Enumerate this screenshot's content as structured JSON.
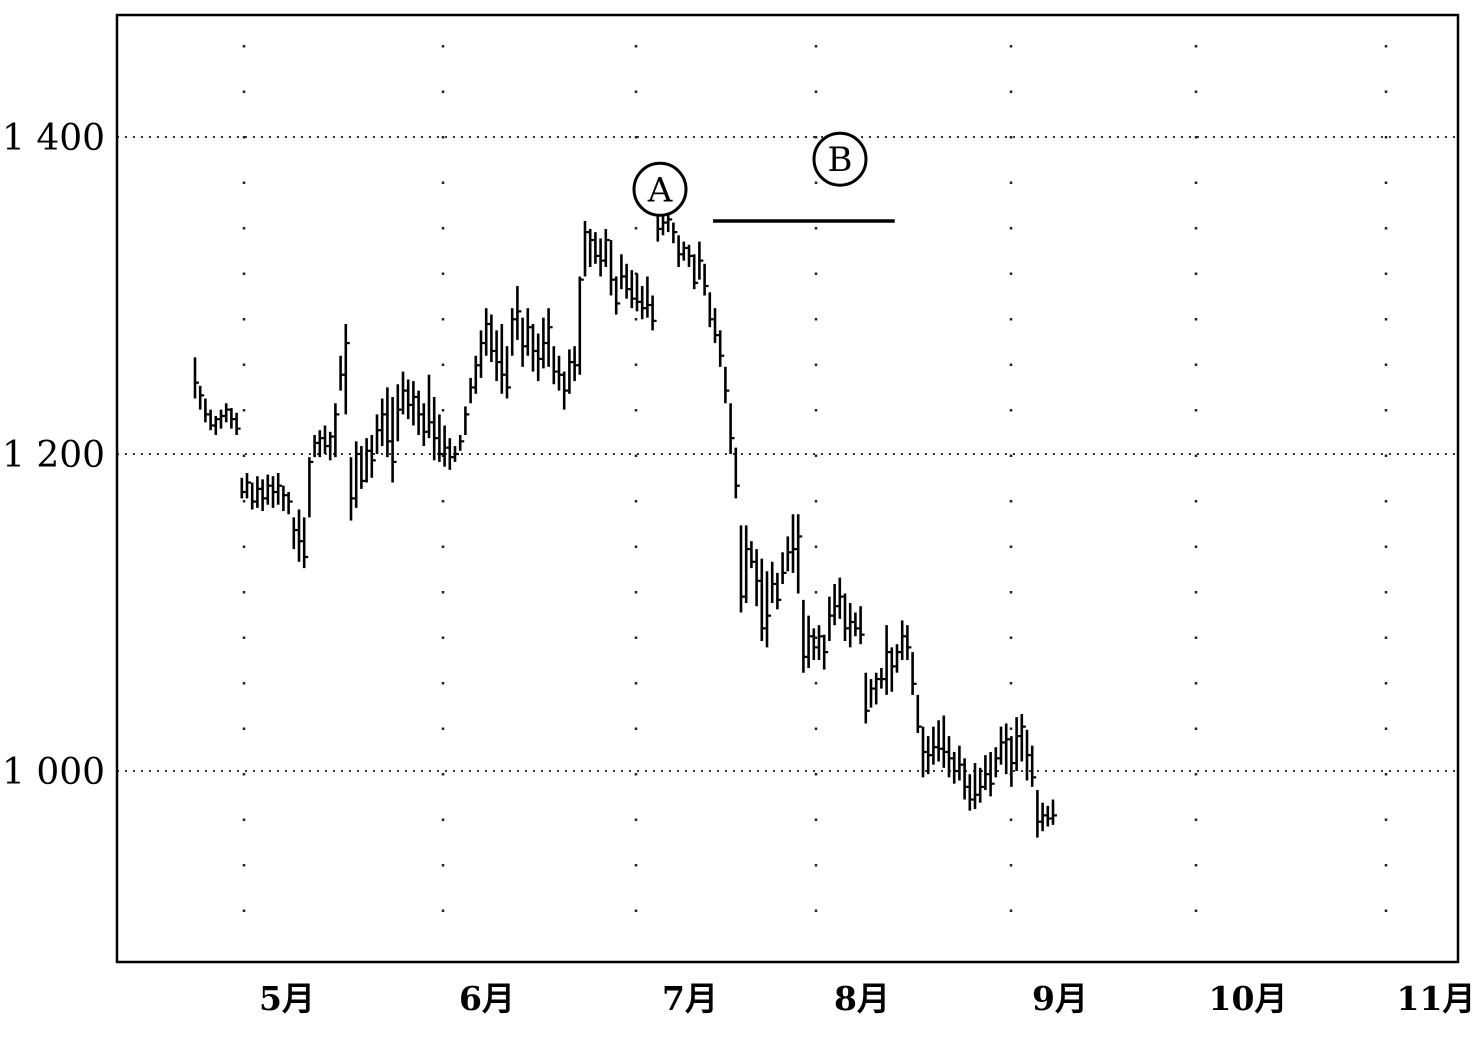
{
  "chart_data": {
    "type": "ohlc",
    "title": "",
    "xlabel": "",
    "ylabel": "",
    "ylim": [
      870,
      1480
    ],
    "y_ticks": [
      {
        "value": 1000,
        "label": "1 000"
      },
      {
        "value": 1200,
        "label": "1 200"
      },
      {
        "value": 1400,
        "label": "1 400"
      }
    ],
    "x_ticks": [
      "5月",
      "6月",
      "7月",
      "8月",
      "9月",
      "10月",
      "11月"
    ],
    "grid": "dotted horizontal lines at labeled levels, dotted vertical columns",
    "annotations": [
      {
        "label": "A",
        "bar_index": 100,
        "price": 1367
      },
      {
        "label": "B",
        "bar_index": 125,
        "price": 1386
      }
    ],
    "resistance_line": {
      "from_index": 100,
      "to_index": 134,
      "value": 1347
    },
    "series": [
      {
        "values": [
          [
            1261,
            1235,
            1245
          ],
          [
            1243,
            1228,
            1237
          ],
          [
            1235,
            1220,
            1225
          ],
          [
            1228,
            1215,
            1218
          ],
          [
            1224,
            1212,
            1222
          ],
          [
            1228,
            1216,
            1224
          ],
          [
            1232,
            1220,
            1228
          ],
          [
            1229,
            1216,
            1222
          ],
          [
            1226,
            1212,
            1216
          ],
          [
            1185,
            1172,
            1176
          ],
          [
            1188,
            1172,
            1182
          ],
          [
            1182,
            1165,
            1170
          ],
          [
            1186,
            1166,
            1178
          ],
          [
            1184,
            1164,
            1172
          ],
          [
            1187,
            1168,
            1180
          ],
          [
            1186,
            1166,
            1176
          ],
          [
            1188,
            1168,
            1180
          ],
          [
            1180,
            1164,
            1174
          ],
          [
            1176,
            1162,
            1170
          ],
          [
            1160,
            1140,
            1152
          ],
          [
            1165,
            1132,
            1145
          ],
          [
            1160,
            1128,
            1135
          ],
          [
            1198,
            1160,
            1195
          ],
          [
            1212,
            1198,
            1207
          ],
          [
            1215,
            1198,
            1210
          ],
          [
            1218,
            1200,
            1205
          ],
          [
            1214,
            1196,
            1211
          ],
          [
            1232,
            1198,
            1225
          ],
          [
            1262,
            1240,
            1250
          ],
          [
            1282,
            1225,
            1270
          ],
          [
            1198,
            1158,
            1172
          ],
          [
            1208,
            1166,
            1200
          ],
          [
            1205,
            1178,
            1183
          ],
          [
            1210,
            1182,
            1202
          ],
          [
            1212,
            1185,
            1196
          ],
          [
            1225,
            1200,
            1215
          ],
          [
            1235,
            1205,
            1225
          ],
          [
            1242,
            1198,
            1208
          ],
          [
            1236,
            1182,
            1195
          ],
          [
            1244,
            1208,
            1228
          ],
          [
            1252,
            1225,
            1240
          ],
          [
            1247,
            1222,
            1231
          ],
          [
            1246,
            1218,
            1236
          ],
          [
            1240,
            1212,
            1225
          ],
          [
            1232,
            1205,
            1214
          ],
          [
            1250,
            1210,
            1220
          ],
          [
            1236,
            1196,
            1210
          ],
          [
            1225,
            1195,
            1200
          ],
          [
            1218,
            1192,
            1204
          ],
          [
            1210,
            1190,
            1198
          ],
          [
            1205,
            1195,
            1200
          ],
          [
            1212,
            1202,
            1208
          ],
          [
            1230,
            1212,
            1225
          ],
          [
            1248,
            1232,
            1242
          ],
          [
            1262,
            1238,
            1256
          ],
          [
            1278,
            1248,
            1270
          ],
          [
            1292,
            1262,
            1282
          ],
          [
            1288,
            1258,
            1265
          ],
          [
            1278,
            1246,
            1258
          ],
          [
            1282,
            1238,
            1250
          ],
          [
            1268,
            1235,
            1242
          ],
          [
            1292,
            1262,
            1285
          ],
          [
            1306,
            1272,
            1290
          ],
          [
            1286,
            1255,
            1268
          ],
          [
            1292,
            1262,
            1280
          ],
          [
            1282,
            1252,
            1265
          ],
          [
            1276,
            1246,
            1260
          ],
          [
            1286,
            1254,
            1270
          ],
          [
            1292,
            1255,
            1280
          ],
          [
            1268,
            1244,
            1252
          ],
          [
            1262,
            1240,
            1250
          ],
          [
            1252,
            1228,
            1240
          ],
          [
            1266,
            1238,
            1258
          ],
          [
            1268,
            1246,
            1256
          ],
          [
            1312,
            1250,
            1310
          ],
          [
            1347,
            1312,
            1340
          ],
          [
            1342,
            1318,
            1335
          ],
          [
            1340,
            1320,
            1325
          ],
          [
            1336,
            1312,
            1322
          ],
          [
            1342,
            1318,
            1335
          ],
          [
            1335,
            1300,
            1310
          ],
          [
            1312,
            1288,
            1295
          ],
          [
            1326,
            1304,
            1312
          ],
          [
            1320,
            1298,
            1304
          ],
          [
            1316,
            1292,
            1298
          ],
          [
            1314,
            1290,
            1296
          ],
          [
            1306,
            1285,
            1292
          ],
          [
            1312,
            1286,
            1294
          ],
          [
            1300,
            1278,
            1284
          ],
          [
            1366,
            1334,
            1342
          ],
          [
            1352,
            1338,
            1346
          ],
          [
            1354,
            1340,
            1348
          ],
          [
            1346,
            1333,
            1340
          ],
          [
            1338,
            1318,
            1326
          ],
          [
            1334,
            1322,
            1330
          ],
          [
            1332,
            1318,
            1325
          ],
          [
            1326,
            1304,
            1308
          ],
          [
            1334,
            1310,
            1322
          ],
          [
            1320,
            1300,
            1306
          ],
          [
            1302,
            1280,
            1285
          ],
          [
            1292,
            1270,
            1275
          ],
          [
            1278,
            1255,
            1262
          ],
          [
            1255,
            1232,
            1240
          ],
          [
            1232,
            1200,
            1210
          ],
          [
            1204,
            1172,
            1180
          ],
          [
            1155,
            1100,
            1110
          ],
          [
            1155,
            1106,
            1140
          ],
          [
            1145,
            1128,
            1132
          ],
          [
            1140,
            1104,
            1120
          ],
          [
            1134,
            1082,
            1090
          ],
          [
            1126,
            1078,
            1098
          ],
          [
            1132,
            1106,
            1118
          ],
          [
            1125,
            1102,
            1108
          ],
          [
            1138,
            1118,
            1125
          ],
          [
            1148,
            1126,
            1138
          ],
          [
            1162,
            1125,
            1140
          ],
          [
            1162,
            1112,
            1148
          ],
          [
            1108,
            1062,
            1072
          ],
          [
            1098,
            1065,
            1085
          ],
          [
            1090,
            1070,
            1078
          ],
          [
            1092,
            1070,
            1085
          ],
          [
            1086,
            1064,
            1075
          ],
          [
            1110,
            1082,
            1098
          ],
          [
            1118,
            1092,
            1104
          ],
          [
            1122,
            1096,
            1110
          ],
          [
            1112,
            1082,
            1090
          ],
          [
            1106,
            1078,
            1094
          ],
          [
            1100,
            1085,
            1090
          ],
          [
            1104,
            1080,
            1086
          ],
          [
            1062,
            1030,
            1038
          ],
          [
            1058,
            1040,
            1052
          ],
          [
            1062,
            1042,
            1058
          ],
          [
            1065,
            1052,
            1058
          ],
          [
            1092,
            1048,
            1075
          ],
          [
            1078,
            1050,
            1066
          ],
          [
            1080,
            1062,
            1075
          ],
          [
            1095,
            1070,
            1085
          ],
          [
            1092,
            1070,
            1078
          ],
          [
            1075,
            1048,
            1055
          ],
          [
            1048,
            1024,
            1028
          ],
          [
            1028,
            996,
            1012
          ],
          [
            1022,
            998,
            1010
          ],
          [
            1028,
            1004,
            1015
          ],
          [
            1032,
            1006,
            1014
          ],
          [
            1035,
            1002,
            1012
          ],
          [
            1022,
            996,
            1008
          ],
          [
            1012,
            992,
            1000
          ],
          [
            1016,
            994,
            1004
          ],
          [
            1008,
            982,
            990
          ],
          [
            998,
            975,
            982
          ],
          [
            1005,
            976,
            985
          ],
          [
            1002,
            980,
            990
          ],
          [
            1010,
            988,
            998
          ],
          [
            1012,
            984,
            992
          ],
          [
            1015,
            996,
            1008
          ],
          [
            1028,
            1004,
            1018
          ],
          [
            1030,
            998,
            1020
          ],
          [
            1022,
            990,
            1005
          ],
          [
            1034,
            1000,
            1022
          ],
          [
            1036,
            1006,
            1028
          ],
          [
            1026,
            994,
            1010
          ],
          [
            1016,
            990,
            996
          ],
          [
            988,
            958,
            968
          ],
          [
            980,
            962,
            972
          ],
          [
            978,
            965,
            970
          ],
          [
            982,
            966,
            972
          ]
        ]
      }
    ]
  }
}
